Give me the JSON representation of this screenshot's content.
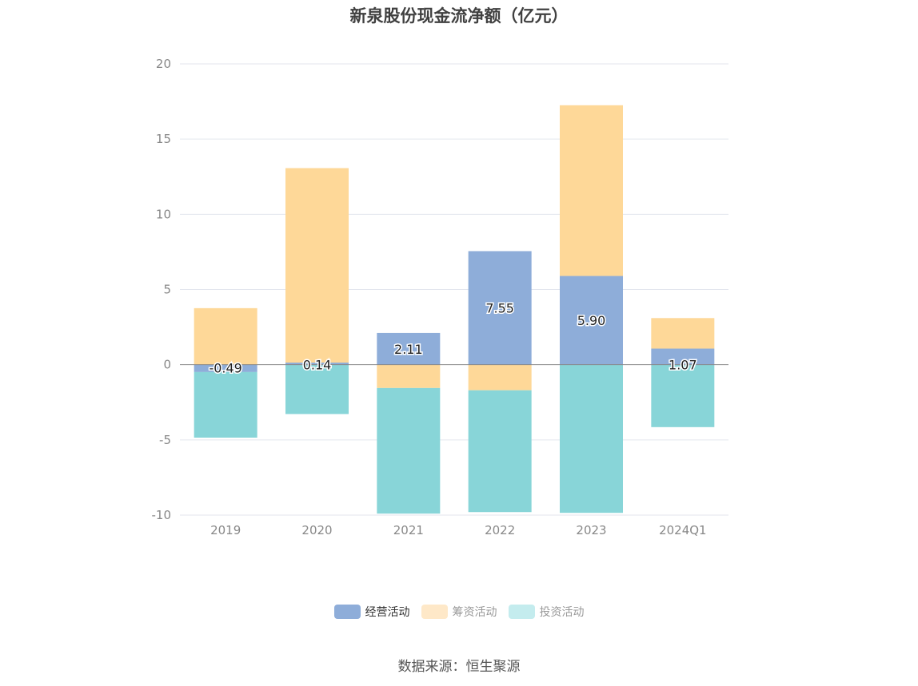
{
  "chart_data": {
    "type": "bar",
    "stacked": true,
    "title": "新泉股份现金流净额（亿元）",
    "xlabel": "",
    "ylabel": "",
    "ylim": [
      -10,
      20
    ],
    "yticks": [
      20,
      15,
      10,
      5,
      0,
      -5,
      -10
    ],
    "categories": [
      "2019",
      "2020",
      "2021",
      "2022",
      "2023",
      "2024Q1"
    ],
    "series": [
      {
        "name": "经营活动",
        "color": "#8eadd9",
        "values": [
          -0.49,
          0.14,
          2.11,
          7.55,
          5.9,
          1.07
        ],
        "labels": [
          "-0.49",
          "0.14",
          "2.11",
          "7.55",
          "5.90",
          "1.07"
        ]
      },
      {
        "name": "筹资活动",
        "color": "#fed898",
        "values": [
          3.76,
          12.93,
          -1.55,
          -1.7,
          11.35,
          2.03
        ]
      },
      {
        "name": "投资活动",
        "color": "#88d5d8",
        "values": [
          -4.36,
          -3.28,
          -8.35,
          -8.1,
          -9.85,
          -4.15
        ]
      }
    ],
    "legend": [
      {
        "name": "经营活动",
        "color": "#8eadd9",
        "active": true
      },
      {
        "name": "筹资活动",
        "color": "#fee8c8",
        "active": false
      },
      {
        "name": "投资活动",
        "color": "#c4ecee",
        "active": false
      }
    ],
    "grid": true,
    "legend_position": "bottom"
  },
  "source_text": "数据来源：恒生聚源"
}
